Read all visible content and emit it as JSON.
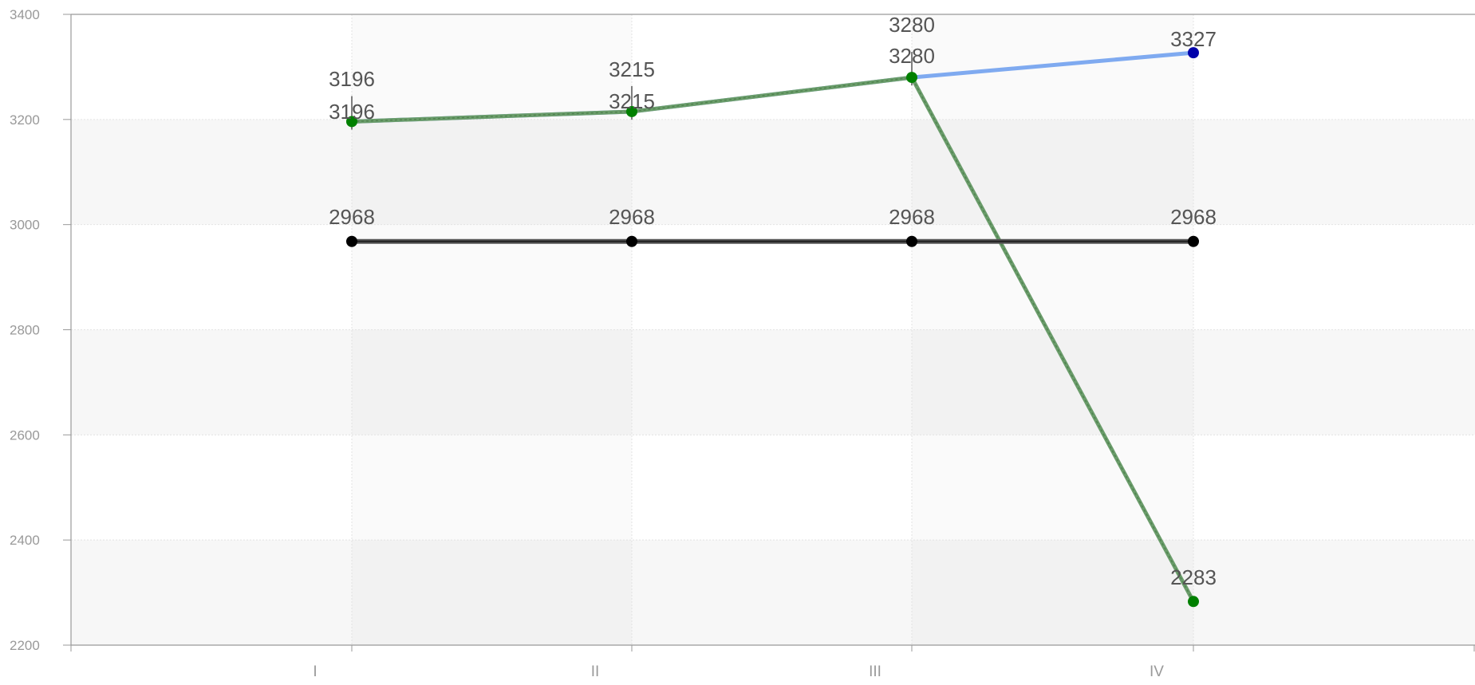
{
  "chart_data": {
    "type": "line",
    "categories": [
      "I",
      "II",
      "III",
      "IV"
    ],
    "ylim": [
      2200,
      3400
    ],
    "yticks": [
      2200,
      2400,
      2600,
      2800,
      3000,
      3200,
      3400
    ],
    "grid": true,
    "series": [
      {
        "color": "#0000AA",
        "line_color": "#7FAAF0",
        "values": [
          3196,
          3215,
          3280,
          3327
        ],
        "style": "solid"
      },
      {
        "color": "#008000",
        "line_color": "#6A9C6A",
        "values": [
          3196,
          3215,
          3280,
          2283
        ],
        "style": "dashed"
      },
      {
        "color": "#000000",
        "line_color": "#333333",
        "values": [
          2968,
          2968,
          2968,
          2968
        ],
        "style": "solid"
      }
    ],
    "labels": {
      "series1": [
        "3196",
        "3215",
        "3280",
        "3327"
      ],
      "series2": [
        "3196",
        "3215",
        "3280",
        "2283"
      ],
      "series3": [
        "2968",
        "2968",
        "2968",
        "2968"
      ]
    }
  }
}
